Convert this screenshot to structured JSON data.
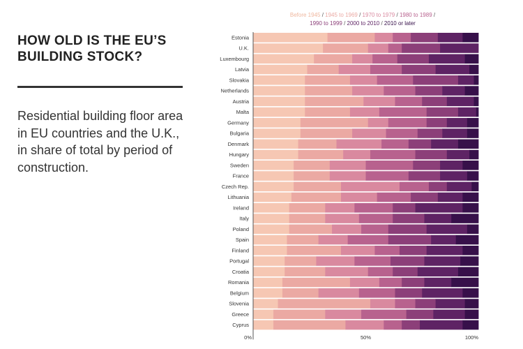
{
  "header": {
    "title": "HOW OLD IS THE EU’S BUILDING STOCK?",
    "description": "Residential building floor area in EU countries and the U.K., in share of total by period of construction."
  },
  "colors": {
    "periods": [
      "#f6c7b3",
      "#eba9a3",
      "#d9899f",
      "#b8628e",
      "#8c3f79",
      "#5e2364",
      "#37104a"
    ]
  },
  "chart_data": {
    "type": "bar",
    "orientation": "horizontal",
    "stacked": true,
    "title": "",
    "xlabel": "",
    "ylabel": "",
    "xlim": [
      0,
      100
    ],
    "x_ticks": [
      "0%",
      "50%",
      "100%"
    ],
    "series_names": [
      "Before 1945",
      "1945 to 1969",
      "1970 to 1979",
      "1980 to 1989",
      "1990 to 1999",
      "2000 to 2010",
      "2010 or later"
    ],
    "legend_separator": "/",
    "categories": [
      "Estonia",
      "U.K.",
      "Luxembourg",
      "Latvia",
      "Slovakia",
      "Netherlands",
      "Austria",
      "Malta",
      "Germany",
      "Bulgaria",
      "Denmark",
      "Hungary",
      "Sweden",
      "France",
      "Czech Rep.",
      "Lithuania",
      "Ireland",
      "Italy",
      "Poland",
      "Spain",
      "Finland",
      "Portugal",
      "Croatia",
      "Romania",
      "Belgium",
      "Slovenia",
      "Greece",
      "Cyprus"
    ],
    "values": [
      [
        33,
        21,
        8,
        8,
        12,
        11,
        7
      ],
      [
        31,
        20,
        9,
        6,
        17,
        17,
        0
      ],
      [
        27,
        17,
        9,
        11,
        14,
        16,
        6
      ],
      [
        24,
        14,
        14,
        14,
        15,
        15,
        4
      ],
      [
        23,
        20,
        12,
        16,
        20,
        7,
        2
      ],
      [
        23,
        21,
        14,
        14,
        12,
        10,
        6
      ],
      [
        23,
        26,
        14,
        12,
        11,
        12,
        2
      ],
      [
        23,
        20,
        13,
        21,
        14,
        8,
        1
      ],
      [
        21,
        30,
        9,
        17,
        9,
        9,
        5
      ],
      [
        21,
        23,
        15,
        14,
        11,
        11,
        5
      ],
      [
        20,
        17,
        20,
        12,
        10,
        12,
        9
      ],
      [
        20,
        20,
        12,
        20,
        14,
        10,
        4
      ],
      [
        18,
        16,
        16,
        21,
        12,
        10,
        7
      ],
      [
        18,
        16,
        16,
        19,
        14,
        12,
        5
      ],
      [
        18,
        21,
        26,
        13,
        8,
        11,
        3
      ],
      [
        17,
        22,
        16,
        15,
        12,
        11,
        7
      ],
      [
        16,
        16,
        13,
        17,
        10,
        21,
        7
      ],
      [
        16,
        16,
        15,
        15,
        14,
        12,
        12
      ],
      [
        16,
        19,
        13,
        12,
        17,
        18,
        5
      ],
      [
        15,
        14,
        13,
        18,
        19,
        11,
        10
      ],
      [
        15,
        24,
        15,
        11,
        12,
        16,
        7
      ],
      [
        14,
        14,
        17,
        16,
        15,
        16,
        8
      ],
      [
        14,
        18,
        19,
        11,
        11,
        18,
        9
      ],
      [
        13,
        30,
        13,
        10,
        10,
        12,
        12
      ],
      [
        13,
        16,
        18,
        16,
        12,
        18,
        7
      ],
      [
        11,
        41,
        11,
        9,
        9,
        13,
        6
      ],
      [
        9,
        23,
        16,
        20,
        12,
        14,
        6
      ],
      [
        9,
        32,
        17,
        8,
        8,
        19,
        7
      ]
    ]
  }
}
